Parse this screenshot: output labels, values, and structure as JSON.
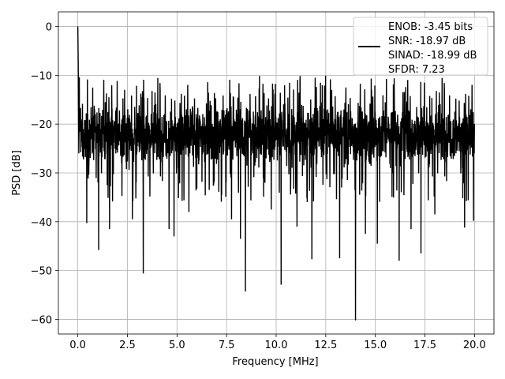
{
  "chart_data": {
    "type": "line",
    "title": "",
    "xlabel": "Frequency [MHz]",
    "ylabel": "PSD [dB]",
    "xlim": [
      -0.98,
      20.98
    ],
    "ylim": [
      -63,
      3
    ],
    "xticks": [
      0.0,
      2.5,
      5.0,
      7.5,
      10.0,
      12.5,
      15.0,
      17.5,
      20.0
    ],
    "xtick_labels": [
      "0.0",
      "2.5",
      "5.0",
      "7.5",
      "10.0",
      "12.5",
      "15.0",
      "17.5",
      "20.0"
    ],
    "yticks": [
      0,
      -10,
      -20,
      -30,
      -40,
      -50,
      -60
    ],
    "ytick_labels": [
      "0",
      "−10",
      "−20",
      "−30",
      "−40",
      "−50",
      "−60"
    ],
    "grid": true,
    "legend_position": "top-right",
    "color": "#000000",
    "series": [
      {
        "name": "",
        "legend_lines": [
          "ENOB: -3.45 bits",
          "SNR: -18.97 dB",
          "SINAD: -18.99 dB",
          "SFDR: 7.23"
        ],
        "x_start": 0.0,
        "x_end": 20.0,
        "values_summary": "dense noise floor around -22 dB spanning approx -35 to -10 dB",
        "peaks": [
          {
            "x": 0.0,
            "y": 0.0
          },
          {
            "x": 0.02,
            "y": -7.5
          },
          {
            "x": 0.05,
            "y": -26.0
          }
        ],
        "dips": [
          {
            "x": 0.45,
            "y": -40.3
          },
          {
            "x": 1.05,
            "y": -45.8
          },
          {
            "x": 1.6,
            "y": -41.5
          },
          {
            "x": 2.75,
            "y": -39.5
          },
          {
            "x": 3.3,
            "y": -50.6
          },
          {
            "x": 4.6,
            "y": -41.5
          },
          {
            "x": 4.85,
            "y": -43.0
          },
          {
            "x": 5.6,
            "y": -38.0
          },
          {
            "x": 7.75,
            "y": -39.5
          },
          {
            "x": 8.2,
            "y": -43.5
          },
          {
            "x": 8.45,
            "y": -54.3
          },
          {
            "x": 9.75,
            "y": -37.5
          },
          {
            "x": 10.25,
            "y": -52.9
          },
          {
            "x": 11.05,
            "y": -41.0
          },
          {
            "x": 11.8,
            "y": -47.7
          },
          {
            "x": 13.2,
            "y": -47.5
          },
          {
            "x": 14.0,
            "y": -60.2
          },
          {
            "x": 14.5,
            "y": -42.5
          },
          {
            "x": 15.1,
            "y": -44.5
          },
          {
            "x": 16.2,
            "y": -48.0
          },
          {
            "x": 16.8,
            "y": -41.5
          },
          {
            "x": 17.3,
            "y": -46.5
          },
          {
            "x": 18.0,
            "y": -38.5
          },
          {
            "x": 19.5,
            "y": -41.2
          },
          {
            "x": 19.95,
            "y": -39.8
          }
        ]
      }
    ]
  }
}
